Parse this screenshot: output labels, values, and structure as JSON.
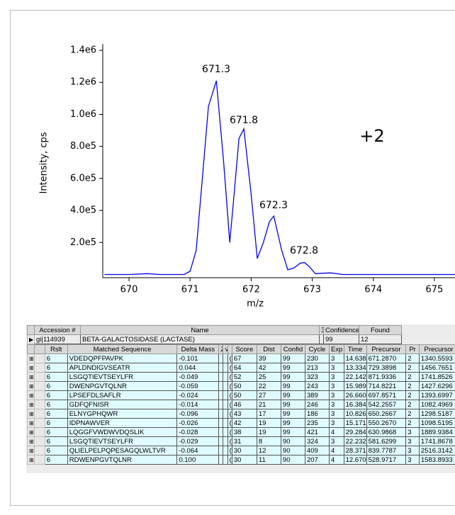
{
  "chart_data": {
    "type": "line",
    "xlabel": "m/z",
    "ylabel": "Intensity, cps",
    "annotations": [
      "671.3",
      "671.8",
      "672.3",
      "672.8",
      "+2"
    ],
    "x": [
      669.6,
      670.0,
      670.3,
      670.5,
      670.9,
      671.0,
      671.1,
      671.2,
      671.3,
      671.43,
      671.55,
      671.65,
      671.72,
      671.8,
      671.88,
      672.0,
      672.1,
      672.2,
      672.3,
      672.37,
      672.5,
      672.6,
      672.7,
      672.8,
      672.87,
      672.95,
      673.05,
      673.3,
      673.5,
      674.0,
      675.5
    ],
    "series": [
      {
        "color": "#0000ff",
        "values": [
          0,
          0,
          5000,
          0,
          0,
          20000,
          150000,
          600000,
          1050000,
          1210000,
          700000,
          200000,
          500000,
          850000,
          910000,
          500000,
          100000,
          200000,
          330000,
          365000,
          150000,
          30000,
          40000,
          70000,
          75000,
          50000,
          5000,
          10000,
          0,
          0,
          0
        ]
      }
    ],
    "xlim": [
      669.57,
      675.5
    ],
    "ylim": [
      -20000,
      1440000
    ],
    "xticks": [
      670,
      671,
      672,
      673,
      674,
      675
    ],
    "yticks": [
      {
        "value": 200000,
        "label": "2.0e5"
      },
      {
        "value": 400000,
        "label": "4.0e5"
      },
      {
        "value": 600000,
        "label": "6.0e5"
      },
      {
        "value": 800000,
        "label": "8.0e5"
      },
      {
        "value": 1000000,
        "label": "1.0e6"
      },
      {
        "value": 1200000,
        "label": "1.2e6"
      },
      {
        "value": 1400000,
        "label": "1.4e6"
      }
    ]
  },
  "protein_table": {
    "headers": [
      "Accession #",
      "Name",
      "Ξ",
      "Confidence",
      "Found"
    ],
    "row": [
      "gi|114939",
      "BETA-GALACTOSIDASE (LACTASE)",
      "",
      "99",
      "12"
    ]
  },
  "peptide_table": {
    "headers": [
      "Rslt",
      "Matched Sequence",
      "Delta Mass",
      "Z",
      "v",
      "",
      "Score",
      "Dist",
      "Confid",
      "Cycle",
      "Exp",
      "Time",
      "Precursor",
      "Pr",
      "Precursor M"
    ],
    "rows": [
      [
        "6",
        "VDEDQPFPAVPK",
        "-0.101",
        "",
        "",
        "(",
        "67",
        "39",
        "99",
        "230",
        "3",
        "14.638",
        "671.2870",
        "2",
        "1340.5593"
      ],
      [
        "6",
        "APLDNDIGVSEATR",
        "0.044",
        "",
        "",
        "(",
        "64",
        "42",
        "99",
        "213",
        "3",
        "13.334",
        "729.3898",
        "2",
        "1456.7651"
      ],
      [
        "6",
        "LSGQTIEVTSEYLFR",
        "-0.049",
        "",
        "",
        "(",
        "52",
        "25",
        "99",
        "323",
        "3",
        "22.142",
        "871.9336",
        "2",
        "1741.8526"
      ],
      [
        "6",
        "DWENPGVTQLNR",
        "-0.059",
        "",
        "",
        "(",
        "50",
        "22",
        "99",
        "243",
        "3",
        "15.989",
        "714.8221",
        "2",
        "1427.6296"
      ],
      [
        "6",
        "LPSEFDLSAFLR",
        "-0.024",
        "",
        "",
        "(",
        "50",
        "27",
        "99",
        "389",
        "3",
        "26.660",
        "697.8571",
        "2",
        "1393.6997"
      ],
      [
        "6",
        "GDFQFNISR",
        "-0.014",
        "",
        "",
        "(",
        "46",
        "21",
        "99",
        "246",
        "3",
        "16.384",
        "542.2557",
        "2",
        "1082.4969"
      ],
      [
        "6",
        "ELNYGPHQWR",
        "-0.096",
        "",
        "",
        "(",
        "43",
        "17",
        "99",
        "186",
        "3",
        "10.826",
        "650.2667",
        "2",
        "1298.5187"
      ],
      [
        "6",
        "IDPNAWVER",
        "-0.026",
        "",
        "",
        "(",
        "42",
        "19",
        "99",
        "235",
        "3",
        "15.171",
        "550.2670",
        "2",
        "1098.5195"
      ],
      [
        "6",
        "LQGGFVWDWVDQSLIK",
        "-0.028",
        "",
        "",
        "(",
        "38",
        "19",
        "99",
        "421",
        "4",
        "29.284",
        "630.9868",
        "3",
        "1889.9384"
      ],
      [
        "6",
        "LSGQTIEVTSEYLFR",
        "-0.029",
        "",
        "",
        "(",
        "31",
        "8",
        "90",
        "324",
        "3",
        "22.232",
        "581.6299",
        "3",
        "1741.8678"
      ],
      [
        "6",
        "QLIELPELPQPESAGQLWLTVR",
        "-0.064",
        "",
        "",
        "(",
        "30",
        "12",
        "90",
        "409",
        "4",
        "28.371",
        "839.7787",
        "3",
        "2516.3142"
      ],
      [
        "6",
        "RDWENPGVTQLNR",
        "0.100",
        "",
        "",
        "(",
        "30",
        "11",
        "90",
        "207",
        "4",
        "12.670",
        "528.9717",
        "3",
        "1583.8933"
      ]
    ]
  }
}
